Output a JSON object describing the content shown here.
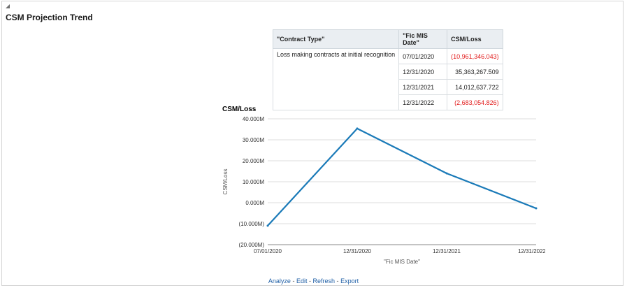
{
  "page": {
    "title": "CSM Projection Trend"
  },
  "table": {
    "headers": [
      "\"Contract Type\"",
      "\"Fic MIS Date\"",
      "CSM/Loss"
    ],
    "contract_type": "Loss making contracts at initial recognition",
    "rows": [
      {
        "date": "07/01/2020",
        "value": "(10,961,346.043)"
      },
      {
        "date": "12/31/2020",
        "value": "35,363,267.509"
      },
      {
        "date": "12/31/2021",
        "value": "14,012,637.722"
      },
      {
        "date": "12/31/2022",
        "value": "(2,683,054.826)"
      }
    ],
    "negative_color": "#e21b1b"
  },
  "chart_data": {
    "type": "line",
    "title": "CSM/Loss",
    "xlabel": "\"Fic MIS Date\"",
    "ylabel": "CSM/Loss",
    "categories": [
      "07/01/2020",
      "12/31/2020",
      "12/31/2021",
      "12/31/2022"
    ],
    "series": [
      {
        "values": [
          -10961346.043,
          35363267.509,
          14012637.722,
          -2683054.826
        ],
        "color": "#1a7ab8"
      }
    ],
    "yticks": [
      "40.000M",
      "30.000M",
      "20.000M",
      "10.000M",
      "0.000M",
      "(10.000M)",
      "(20.000M)"
    ],
    "ylim": [
      -20000000,
      40000000
    ],
    "grid": true
  },
  "footer": {
    "analyze": "Analyze",
    "edit": "Edit",
    "refresh": "Refresh",
    "export": "Export",
    "separator": "-"
  }
}
